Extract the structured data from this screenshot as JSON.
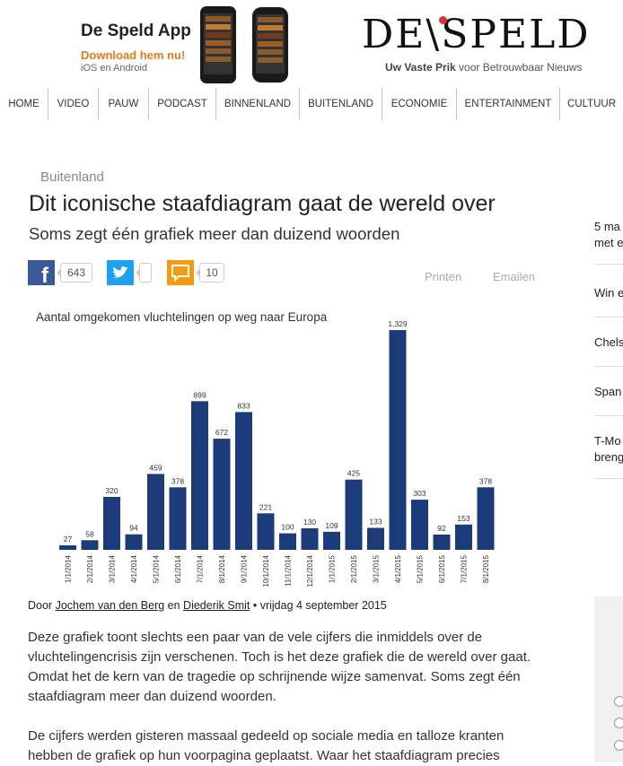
{
  "header": {
    "app_title": "De Speld App",
    "app_download": "Download hem nu!",
    "app_platforms": "iOS en Android",
    "logo_text": "DE\\SPELD",
    "tagline_bold": "Uw Vaste Prik",
    "tagline_rest": " voor Betrouwbaar Nieuws"
  },
  "nav": {
    "items": [
      "HOME",
      "VIDEO",
      "PAUW",
      "PODCAST",
      "BINNENLAND",
      "BUITENLAND",
      "ECONOMIE",
      "ENTERTAINMENT",
      "CULTUUR"
    ]
  },
  "article": {
    "category": "Buitenland",
    "headline": "Dit iconische staafdiagram gaat de wereld over",
    "subhead": "Soms zegt één grafiek meer dan duizend woorden",
    "share": {
      "facebook_count": "643",
      "twitter_count": "",
      "comments_count": "10"
    },
    "actions": {
      "print": "Printen",
      "email": "Emailen"
    },
    "byline": {
      "prefix": "Door ",
      "author1": "Jochem van den Berg",
      "joiner": " en ",
      "author2": "Diederik Smit",
      "date": " • vrijdag 4 september 2015"
    },
    "paragraphs": [
      "Deze grafiek toont slechts een paar van de vele cijfers die inmiddels over de vluchtelingencrisis zijn verschenen. Toch is het deze grafiek die de wereld over gaat. Omdat het de kern van de tragedie op schrijnende wijze samenvat. Soms zegt één staafdiagram meer dan duizend woorden.",
      "De cijfers werden gisteren massaal gedeeld op sociale media en talloze kranten hebben de grafiek op hun voorpagina geplaatst. Waar het staafdiagram precies"
    ]
  },
  "chart_data": {
    "type": "bar",
    "title": "Aantal omgekomen vluchtelingen op weg naar Europa",
    "categories": [
      "1/1/2014",
      "2/1/2014",
      "3/1/2014",
      "4/1/2014",
      "5/1/2014",
      "6/1/2014",
      "7/1/2014",
      "8/1/2014",
      "9/1/2014",
      "10/1/2014",
      "11/1/2014",
      "12/1/2014",
      "1/1/2015",
      "2/1/2015",
      "3/1/2015",
      "4/1/2015",
      "5/1/2015",
      "6/1/2015",
      "7/1/2015",
      "8/1/2015"
    ],
    "values": [
      27,
      58,
      320,
      94,
      459,
      378,
      899,
      672,
      833,
      221,
      100,
      130,
      109,
      425,
      133,
      1329,
      303,
      92,
      153,
      378
    ],
    "value_labels": [
      "27",
      "58",
      "320",
      "94",
      "459",
      "378",
      "899",
      "672",
      "833",
      "221",
      "100",
      "130",
      "109",
      "425",
      "133",
      "1,329",
      "303",
      "92",
      "153",
      "378"
    ],
    "ylim": [
      0,
      1329
    ],
    "grid": false,
    "bar_color": "#1c3b7a"
  },
  "sidebar": {
    "items": [
      "5 ma|met e",
      "Win e",
      "Chels",
      "Span",
      "T-Mo|breng"
    ]
  },
  "colors": {
    "accent": "#e8791a",
    "nav_divider": "#e6b5b5",
    "facebook": "#3b5998",
    "twitter": "#1da1f2",
    "comments": "#f39c12"
  }
}
